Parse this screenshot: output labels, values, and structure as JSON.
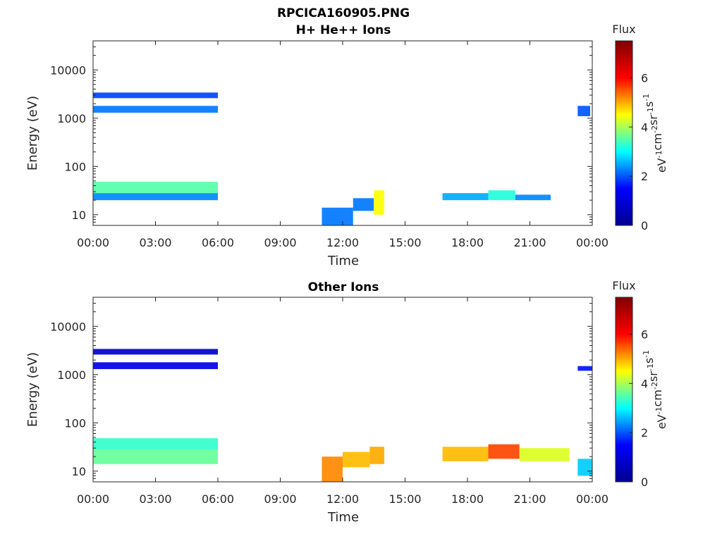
{
  "figure": {
    "title_line1": "RPCICA160905.PNG"
  },
  "colormap": {
    "name": "jet",
    "stops": [
      "#00008f",
      "#0000ff",
      "#00ffff",
      "#ffff00",
      "#ff0000",
      "#800000"
    ]
  },
  "chart_data": [
    {
      "type": "heatmap",
      "title": "H+ He++ Ions",
      "xlabel": "Time",
      "ylabel": "Energy (eV)",
      "x_ticks": [
        "00:00",
        "03:00",
        "06:00",
        "09:00",
        "12:00",
        "15:00",
        "18:00",
        "21:00",
        "00:00"
      ],
      "xlim_hours": [
        0,
        24
      ],
      "y_scale": "log",
      "y_ticks": [
        "10",
        "100",
        "1000",
        "10000"
      ],
      "ylim": [
        6,
        40000
      ],
      "colorbar": {
        "label": "Flux",
        "unit": "eV-1cm-2sr-1s-1",
        "ticks": [
          "0",
          "2",
          "4",
          "6"
        ],
        "range": [
          0,
          7.5
        ]
      },
      "regions": [
        {
          "t0": 0.0,
          "t1": 6.0,
          "e0": 28,
          "e1": 48,
          "flux": 3.5
        },
        {
          "t0": 0.0,
          "t1": 6.0,
          "e0": 20,
          "e1": 28,
          "flux": 2.3
        },
        {
          "t0": 0.0,
          "t1": 6.0,
          "e0": 1300,
          "e1": 1800,
          "flux": 2.2
        },
        {
          "t0": 0.0,
          "t1": 6.0,
          "e0": 2600,
          "e1": 3400,
          "flux": 1.9
        },
        {
          "t0": 11.0,
          "t1": 12.5,
          "e0": 6,
          "e1": 14,
          "flux": 2.2
        },
        {
          "t0": 12.5,
          "t1": 13.5,
          "e0": 12,
          "e1": 22,
          "flux": 2.2
        },
        {
          "t0": 13.5,
          "t1": 14.0,
          "e0": 10,
          "e1": 32,
          "flux": 4.5
        },
        {
          "t0": 16.8,
          "t1": 19.0,
          "e0": 20,
          "e1": 28,
          "flux": 2.5
        },
        {
          "t0": 19.0,
          "t1": 20.3,
          "e0": 20,
          "e1": 32,
          "flux": 3.2
        },
        {
          "t0": 20.3,
          "t1": 22.0,
          "e0": 20,
          "e1": 26,
          "flux": 2.3
        },
        {
          "t0": 23.3,
          "t1": 23.9,
          "e0": 1100,
          "e1": 1800,
          "flux": 2.0
        }
      ]
    },
    {
      "type": "heatmap",
      "title": "Other Ions",
      "xlabel": "Time",
      "ylabel": "Energy (eV)",
      "x_ticks": [
        "00:00",
        "03:00",
        "06:00",
        "09:00",
        "12:00",
        "15:00",
        "18:00",
        "21:00",
        "00:00"
      ],
      "xlim_hours": [
        0,
        24
      ],
      "y_scale": "log",
      "y_ticks": [
        "10",
        "100",
        "1000",
        "10000"
      ],
      "ylim": [
        6,
        40000
      ],
      "colorbar": {
        "label": "Flux",
        "unit": "eV-1cm-2sr-1s-1",
        "ticks": [
          "0",
          "2",
          "4",
          "6"
        ],
        "range": [
          0,
          7.5
        ]
      },
      "regions": [
        {
          "t0": 0.0,
          "t1": 6.0,
          "e0": 28,
          "e1": 48,
          "flux": 3.3
        },
        {
          "t0": 0.0,
          "t1": 6.0,
          "e0": 14,
          "e1": 28,
          "flux": 3.6
        },
        {
          "t0": 0.0,
          "t1": 6.0,
          "e0": 1300,
          "e1": 1800,
          "flux": 1.2
        },
        {
          "t0": 0.0,
          "t1": 6.0,
          "e0": 2600,
          "e1": 3400,
          "flux": 0.9
        },
        {
          "t0": 11.0,
          "t1": 12.0,
          "e0": 6,
          "e1": 20,
          "flux": 5.2
        },
        {
          "t0": 12.0,
          "t1": 13.3,
          "e0": 12,
          "e1": 25,
          "flux": 4.9
        },
        {
          "t0": 13.3,
          "t1": 14.0,
          "e0": 14,
          "e1": 32,
          "flux": 5.0
        },
        {
          "t0": 16.8,
          "t1": 19.0,
          "e0": 16,
          "e1": 32,
          "flux": 4.9
        },
        {
          "t0": 19.0,
          "t1": 20.5,
          "e0": 18,
          "e1": 36,
          "flux": 5.6
        },
        {
          "t0": 20.5,
          "t1": 22.9,
          "e0": 16,
          "e1": 30,
          "flux": 4.3
        },
        {
          "t0": 23.3,
          "t1": 24.0,
          "e0": 1200,
          "e1": 1500,
          "flux": 1.6
        },
        {
          "t0": 23.3,
          "t1": 24.0,
          "e0": 8,
          "e1": 18,
          "flux": 2.7
        }
      ]
    }
  ]
}
